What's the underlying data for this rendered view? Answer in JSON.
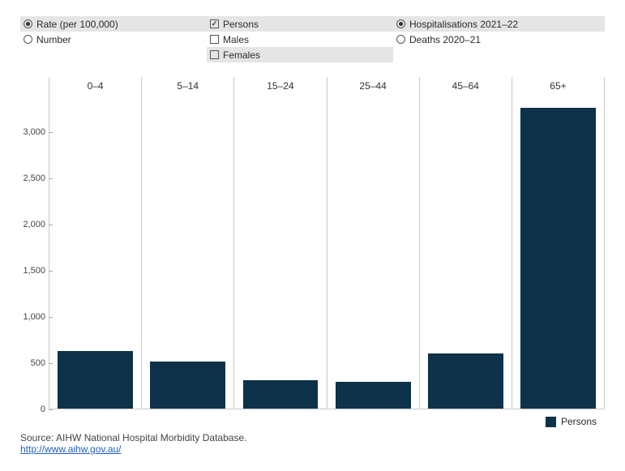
{
  "controls": {
    "measure": {
      "rate_label": "Rate (per 100,000)",
      "number_label": "Number",
      "selected": "rate"
    },
    "series": {
      "persons_label": "Persons",
      "males_label": "Males",
      "females_label": "Females",
      "persons_checked": true,
      "males_checked": false,
      "females_checked": false
    },
    "dataset": {
      "hosp_label": "Hospitalisations 2021–22",
      "deaths_label": "Deaths 2020–21",
      "selected": "hosp"
    }
  },
  "chart": {
    "type": "bar",
    "facet_labels": [
      "0–4",
      "5–14",
      "15–24",
      "25–44",
      "45–64",
      "65+"
    ],
    "values": [
      620,
      510,
      310,
      290,
      600,
      3260
    ],
    "ylim": [
      0,
      3400
    ],
    "yticks": [
      0,
      500,
      1000,
      1500,
      2000,
      2500,
      3000
    ],
    "ytick_labels": [
      "0",
      "500",
      "1,000",
      "1,500",
      "2,000",
      "2,500",
      "3,000"
    ],
    "bar_color": "#0d3249",
    "facet_border_color": "#c9c9c9",
    "background_color": "#ffffff",
    "label_fontsize": 12,
    "tick_fontsize": 11
  },
  "legend": {
    "label": "Persons",
    "swatch_color": "#0d3249"
  },
  "source": {
    "text": "Source: AIHW National Hospital Morbidity Database.",
    "link_text": "http://www.aihw.gov.au/",
    "link_href": "http://www.aihw.gov.au/"
  }
}
